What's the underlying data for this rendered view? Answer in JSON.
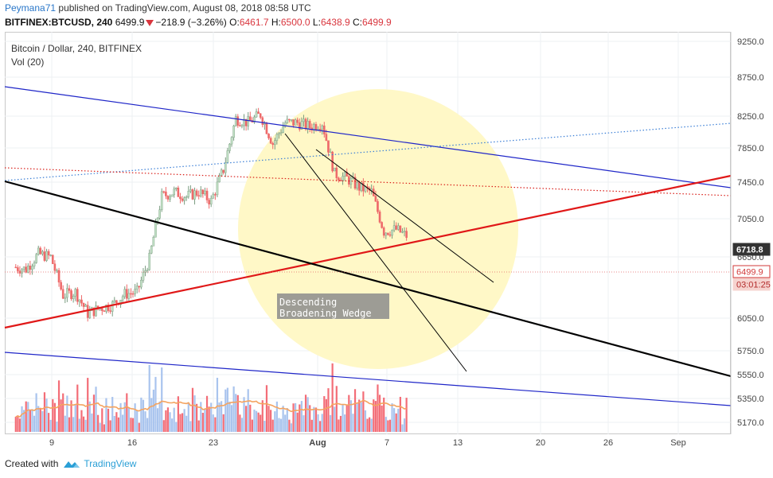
{
  "header": {
    "author": "Peymana71",
    "published": "published on TradingView.com, August 08, 2018 08:58 UTC",
    "symbol": "BITFINEX:BTCUSD, 240",
    "last": "6499.9",
    "change": "−218.9 (−3.26%)",
    "o_label": "O:",
    "o": "6461.7",
    "h_label": "H:",
    "h": "6500.0",
    "l_label": "L:",
    "l": "6438.9",
    "c_label": "C:",
    "c": "6499.9"
  },
  "legend": {
    "title": "Bitcoin / Dollar, 240, BITFINEX",
    "volume": "Vol (20)"
  },
  "footer": {
    "created_with": "Created with",
    "brand": "TradingView"
  },
  "colors": {
    "up": "#c0e0c4",
    "up_border": "#7a9c80",
    "down": "#ee6a6a",
    "vol_up": "#a9c4ee",
    "vol_down": "#f36d77",
    "vol_ma": "#f4a460",
    "wedge_circle": "#fff8c4"
  },
  "chart_data": {
    "type": "candlestick",
    "title": "Bitcoin / Dollar, 240, BITFINEX",
    "x_ticks": [
      "9",
      "16",
      "23",
      "Aug",
      "7",
      "13",
      "20",
      "26",
      "Sep"
    ],
    "y_ticks": [
      "9250.0",
      "8750.0",
      "8250.0",
      "7850.0",
      "7450.0",
      "7050.0",
      "6650.0",
      "6050.0",
      "5750.0",
      "5550.0",
      "5350.0",
      "5170.0"
    ],
    "scale": "log",
    "price_labels": [
      {
        "value": "6718.8",
        "kind": "previous close"
      },
      {
        "value": "6499.9",
        "kind": "last price"
      },
      {
        "value": "03:01:25",
        "kind": "bar countdown"
      }
    ],
    "annotation": "Descending\nBroadening Wedge",
    "close_path": [
      {
        "date": "2018-07-06",
        "price": 6620
      },
      {
        "date": "2018-07-07",
        "price": 6600
      },
      {
        "date": "2018-07-08",
        "price": 6750
      },
      {
        "date": "2018-07-09",
        "price": 6720
      },
      {
        "date": "2018-07-10",
        "price": 6350
      },
      {
        "date": "2018-07-11",
        "price": 6380
      },
      {
        "date": "2018-07-12",
        "price": 6180
      },
      {
        "date": "2018-07-13",
        "price": 6230
      },
      {
        "date": "2018-07-14",
        "price": 6260
      },
      {
        "date": "2018-07-15",
        "price": 6360
      },
      {
        "date": "2018-07-16",
        "price": 6380
      },
      {
        "date": "2018-07-17",
        "price": 6700
      },
      {
        "date": "2018-07-18",
        "price": 7350
      },
      {
        "date": "2018-07-19",
        "price": 7400
      },
      {
        "date": "2018-07-20",
        "price": 7350
      },
      {
        "date": "2018-07-21",
        "price": 7400
      },
      {
        "date": "2018-07-22",
        "price": 7300
      },
      {
        "date": "2018-07-23",
        "price": 7650
      },
      {
        "date": "2018-07-24",
        "price": 8250
      },
      {
        "date": "2018-07-25",
        "price": 8200
      },
      {
        "date": "2018-07-26",
        "price": 8300
      },
      {
        "date": "2018-07-27",
        "price": 7950
      },
      {
        "date": "2018-07-28",
        "price": 8200
      },
      {
        "date": "2018-07-29",
        "price": 8200
      },
      {
        "date": "2018-07-30",
        "price": 8150
      },
      {
        "date": "2018-07-31",
        "price": 8200
      },
      {
        "date": "2018-08-01",
        "price": 7600
      },
      {
        "date": "2018-08-02",
        "price": 7550
      },
      {
        "date": "2018-08-03",
        "price": 7450
      },
      {
        "date": "2018-08-04",
        "price": 7400
      },
      {
        "date": "2018-08-05",
        "price": 6980
      },
      {
        "date": "2018-08-06",
        "price": 7000
      },
      {
        "date": "2018-08-07",
        "price": 6920
      },
      {
        "date": "2018-08-08",
        "price": 6499.9
      }
    ],
    "volume_ma_label": "Vol (20)",
    "drawings": [
      {
        "name": "upper-blue-channel",
        "color": "#1f26c8",
        "style": "solid"
      },
      {
        "name": "lower-blue-channel",
        "color": "#1f26c8",
        "style": "solid"
      },
      {
        "name": "blue-dotted-trendline",
        "color": "#3b7fd6",
        "style": "dotted"
      },
      {
        "name": "red-dotted-trendline",
        "color": "#d91e18",
        "style": "dotted"
      },
      {
        "name": "red-rising-trendline",
        "color": "#e01818",
        "style": "solid"
      },
      {
        "name": "black-descending-trendline",
        "color": "#000000",
        "style": "solid"
      },
      {
        "name": "wedge-line-1",
        "color": "#000000",
        "style": "solid"
      },
      {
        "name": "wedge-line-2",
        "color": "#000000",
        "style": "solid"
      }
    ]
  }
}
